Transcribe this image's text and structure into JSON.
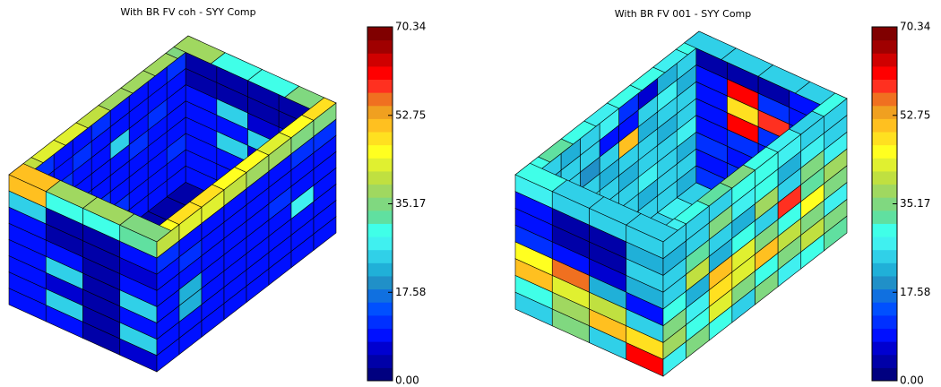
{
  "chart_data": [
    {
      "type": "contour3d",
      "title": "With BR FV coh - SYY Comp",
      "clim": [
        0,
        70.34
      ],
      "cticks": [
        {
          "value": 0,
          "label": "0.00"
        },
        17.58,
        35.17,
        52.75,
        70.34
      ],
      "colormap": [
        "#000080",
        "#0000a8",
        "#0000d0",
        "#0010ff",
        "#0030ff",
        "#0050ff",
        "#1070e0",
        "#2090c8",
        "#20b0d8",
        "#30d0e8",
        "#40f0f0",
        "#40ffe8",
        "#60e0a0",
        "#80d880",
        "#a0d860",
        "#c0e040",
        "#e0f030",
        "#ffff20",
        "#ffe020",
        "#ffc020",
        "#f0a020",
        "#f07020",
        "#ff3020",
        "#ff0000",
        "#d00000",
        "#a00000",
        "#800000"
      ],
      "faces": {
        "floor": [
          [
            4,
            3,
            4,
            5,
            4,
            3,
            4,
            5
          ],
          [
            3,
            4,
            5,
            4,
            3,
            5,
            4,
            3
          ],
          [
            5,
            3,
            4,
            3,
            4,
            4,
            3,
            4
          ],
          [
            4,
            5,
            3,
            4,
            5,
            3,
            4,
            5
          ]
        ],
        "back_long": [
          [
            12,
            10,
            9,
            11,
            10,
            9,
            10,
            12
          ],
          [
            10,
            9,
            11,
            10,
            9,
            8,
            9,
            10
          ],
          [
            9,
            11,
            10,
            9,
            24,
            10,
            11,
            9
          ],
          [
            11,
            10,
            9,
            10,
            9,
            11,
            10,
            9
          ],
          [
            9,
            10,
            11,
            9,
            10,
            9,
            8,
            10
          ],
          [
            10,
            9,
            10,
            11,
            9,
            10,
            9,
            11
          ],
          [
            9,
            10,
            9,
            10,
            11,
            9,
            10,
            9
          ],
          [
            10,
            9,
            11,
            9,
            10,
            10,
            9,
            10
          ]
        ],
        "back_short": [
          [
            4,
            3,
            3,
            5
          ],
          [
            5,
            4,
            3,
            4
          ],
          [
            8,
            24,
            6,
            8
          ],
          [
            9,
            8,
            24,
            9
          ],
          [
            8,
            24,
            7,
            8
          ],
          [
            9,
            8,
            9,
            10
          ],
          [
            10,
            9,
            8,
            9
          ],
          [
            9,
            10,
            9,
            8
          ]
        ],
        "rim_far_long": [
          40,
          42,
          42,
          40,
          39,
          38,
          37,
          36
        ],
        "rim_far_short": [
          38,
          30,
          30,
          34
        ],
        "rim_near_long": [
          46,
          47,
          47,
          46,
          45,
          44,
          45,
          47
        ],
        "rim_near_short": [
          50,
          38,
          38,
          36
        ],
        "front": [
          [
            50,
            30,
            30,
            32
          ],
          [
            26,
            5,
            3,
            8
          ],
          [
            10,
            4,
            3,
            6
          ],
          [
            9,
            8,
            4,
            9
          ],
          [
            10,
            24,
            3,
            24
          ],
          [
            8,
            7,
            3,
            8
          ],
          [
            10,
            24,
            4,
            24
          ],
          [
            8,
            8,
            5,
            7
          ]
        ],
        "side": [
          [
            40,
            42,
            42,
            40,
            38,
            37,
            36,
            36
          ],
          [
            12,
            10,
            9,
            8,
            9,
            10,
            11,
            12
          ],
          [
            10,
            11,
            8,
            9,
            10,
            9,
            8,
            10
          ],
          [
            9,
            8,
            10,
            9,
            8,
            11,
            10,
            9
          ],
          [
            8,
            21,
            9,
            8,
            10,
            9,
            27,
            9
          ],
          [
            10,
            21,
            8,
            9,
            8,
            10,
            9,
            8
          ],
          [
            9,
            10,
            8,
            10,
            9,
            8,
            10,
            9
          ],
          [
            8,
            9,
            10,
            9,
            8,
            9,
            8,
            9
          ]
        ]
      }
    },
    {
      "type": "contour3d",
      "title": "With BR FV 001 - SYY Comp",
      "clim": [
        0,
        70.34
      ],
      "cticks": [
        {
          "value": 0,
          "label": "0.00"
        },
        17.58,
        35.17,
        52.75,
        70.34
      ],
      "colormap": [
        "#000080",
        "#0000a8",
        "#0000d0",
        "#0010ff",
        "#0030ff",
        "#0050ff",
        "#1070e0",
        "#2090c8",
        "#20b0d8",
        "#30d0e8",
        "#40f0f0",
        "#40ffe8",
        "#60e0a0",
        "#80d880",
        "#a0d860",
        "#c0e040",
        "#e0f030",
        "#ffff20",
        "#ffe020",
        "#ffc020",
        "#f0a020",
        "#f07020",
        "#ff3020",
        "#ff0000",
        "#d00000",
        "#a00000",
        "#800000"
      ],
      "faces": {
        "floor": [
          [
            26,
            28,
            24,
            30,
            27,
            25,
            28,
            26
          ],
          [
            24,
            52,
            26,
            28,
            25,
            30,
            24,
            27
          ],
          [
            28,
            25,
            30,
            26,
            24,
            28,
            26,
            25
          ],
          [
            25,
            27,
            26,
            24,
            28,
            26,
            27,
            24
          ]
        ],
        "back_long": [
          [
            24,
            22,
            26,
            28,
            12,
            6,
            22,
            24
          ],
          [
            22,
            26,
            24,
            10,
            8,
            24,
            28,
            22
          ],
          [
            26,
            24,
            20,
            24,
            52,
            22,
            24,
            26
          ],
          [
            24,
            28,
            26,
            22,
            24,
            26,
            22,
            24
          ],
          [
            22,
            24,
            28,
            26,
            22,
            24,
            26,
            28
          ],
          [
            26,
            22,
            24,
            24,
            26,
            28,
            24,
            22
          ],
          [
            24,
            26,
            22,
            28,
            24,
            22,
            26,
            24
          ],
          [
            22,
            24,
            26,
            24,
            22,
            26,
            24,
            22
          ]
        ],
        "back_short": [
          [
            5,
            4,
            5,
            8
          ],
          [
            8,
            62,
            12,
            8
          ],
          [
            10,
            48,
            58,
            10
          ],
          [
            9,
            62,
            12,
            8
          ],
          [
            10,
            12,
            10,
            9
          ],
          [
            12,
            10,
            11,
            12
          ],
          [
            10,
            12,
            12,
            10
          ],
          [
            12,
            11,
            10,
            12
          ]
        ],
        "rim_far_long": [
          30,
          32,
          30,
          28,
          30,
          30,
          28,
          30
        ],
        "rim_far_short": [
          26,
          24,
          24,
          26
        ],
        "rim_near_long": [
          28,
          30,
          32,
          34,
          30,
          28,
          26,
          30
        ],
        "rim_near_short": [
          30,
          24,
          24,
          26
        ],
        "front": [
          [
            28,
            24,
            24,
            26
          ],
          [
            8,
            4,
            3,
            22
          ],
          [
            10,
            5,
            4,
            24
          ],
          [
            12,
            8,
            6,
            22
          ],
          [
            45,
            57,
            22,
            10
          ],
          [
            50,
            44,
            40,
            25
          ],
          [
            30,
            38,
            50,
            48
          ],
          [
            24,
            36,
            25,
            60
          ]
        ],
        "side": [
          [
            24,
            26,
            24,
            30,
            30,
            27,
            24,
            26
          ],
          [
            22,
            24,
            35,
            28,
            30,
            22,
            28,
            24
          ],
          [
            26,
            32,
            24,
            22,
            38,
            24,
            36,
            28
          ],
          [
            24,
            40,
            22,
            30,
            26,
            58,
            32,
            38
          ],
          [
            30,
            22,
            50,
            42,
            36,
            30,
            45,
            35
          ],
          [
            36,
            28,
            48,
            44,
            52,
            40,
            34,
            28
          ],
          [
            38,
            30,
            42,
            36,
            30,
            36,
            40,
            34
          ],
          [
            28,
            34,
            30,
            26,
            34,
            28,
            30,
            32
          ]
        ]
      }
    }
  ]
}
